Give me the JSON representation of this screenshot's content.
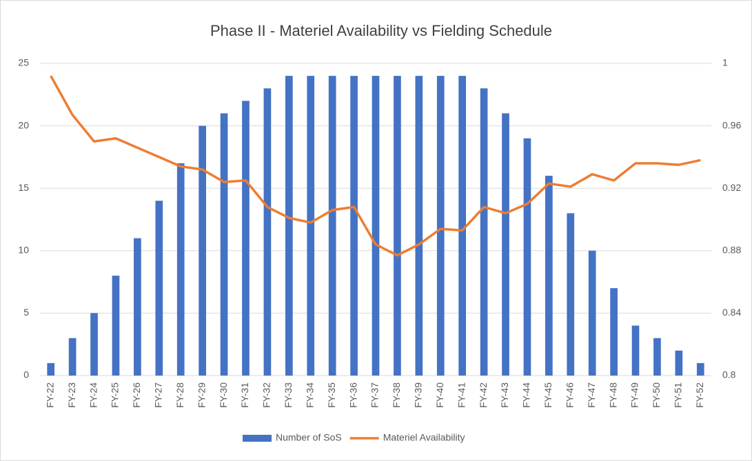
{
  "chart_data": {
    "type": "bar_line",
    "title": "Phase II - Materiel Availability vs Fielding Schedule",
    "categories": [
      "FY-22",
      "FY-23",
      "FY-24",
      "FY-25",
      "FY-26",
      "FY-27",
      "FY-28",
      "FY-29",
      "FY-30",
      "FY-31",
      "FY-32",
      "FY-33",
      "FY-34",
      "FY-35",
      "FY-36",
      "FY-37",
      "FY-38",
      "FY-39",
      "FY-40",
      "FY-41",
      "FY-42",
      "FY-43",
      "FY-44",
      "FY-45",
      "FY-46",
      "FY-47",
      "FY-48",
      "FY-49",
      "FY-50",
      "FY-51",
      "FY-52"
    ],
    "series": [
      {
        "name": "Number of SoS",
        "type": "bar",
        "color": "#4472c4",
        "values": [
          1,
          3,
          5,
          8,
          11,
          14,
          17,
          20,
          21,
          22,
          23,
          24,
          24,
          24,
          24,
          24,
          24,
          24,
          24,
          24,
          23,
          21,
          19,
          16,
          13,
          10,
          7,
          4,
          3,
          2,
          1
        ]
      },
      {
        "name": "Materiel Availability",
        "type": "line",
        "axis": "y2",
        "color": "#ed7d31",
        "values": [
          0.992,
          0.967,
          0.95,
          0.952,
          0.946,
          0.94,
          0.934,
          0.932,
          0.924,
          0.925,
          0.908,
          0.901,
          0.898,
          0.906,
          0.908,
          0.884,
          0.877,
          0.884,
          0.894,
          0.893,
          0.908,
          0.904,
          0.91,
          0.923,
          0.921,
          0.929,
          0.925,
          0.936,
          0.936,
          0.935,
          0.938
        ]
      }
    ],
    "ylim": [
      0,
      25
    ],
    "yticks": [
      0,
      5,
      10,
      15,
      20,
      25
    ],
    "y2lim": [
      0.8,
      1
    ],
    "y2ticks": [
      0.8,
      0.84,
      0.88,
      0.92,
      0.96,
      1
    ],
    "grid": true,
    "legend": "bottom"
  }
}
